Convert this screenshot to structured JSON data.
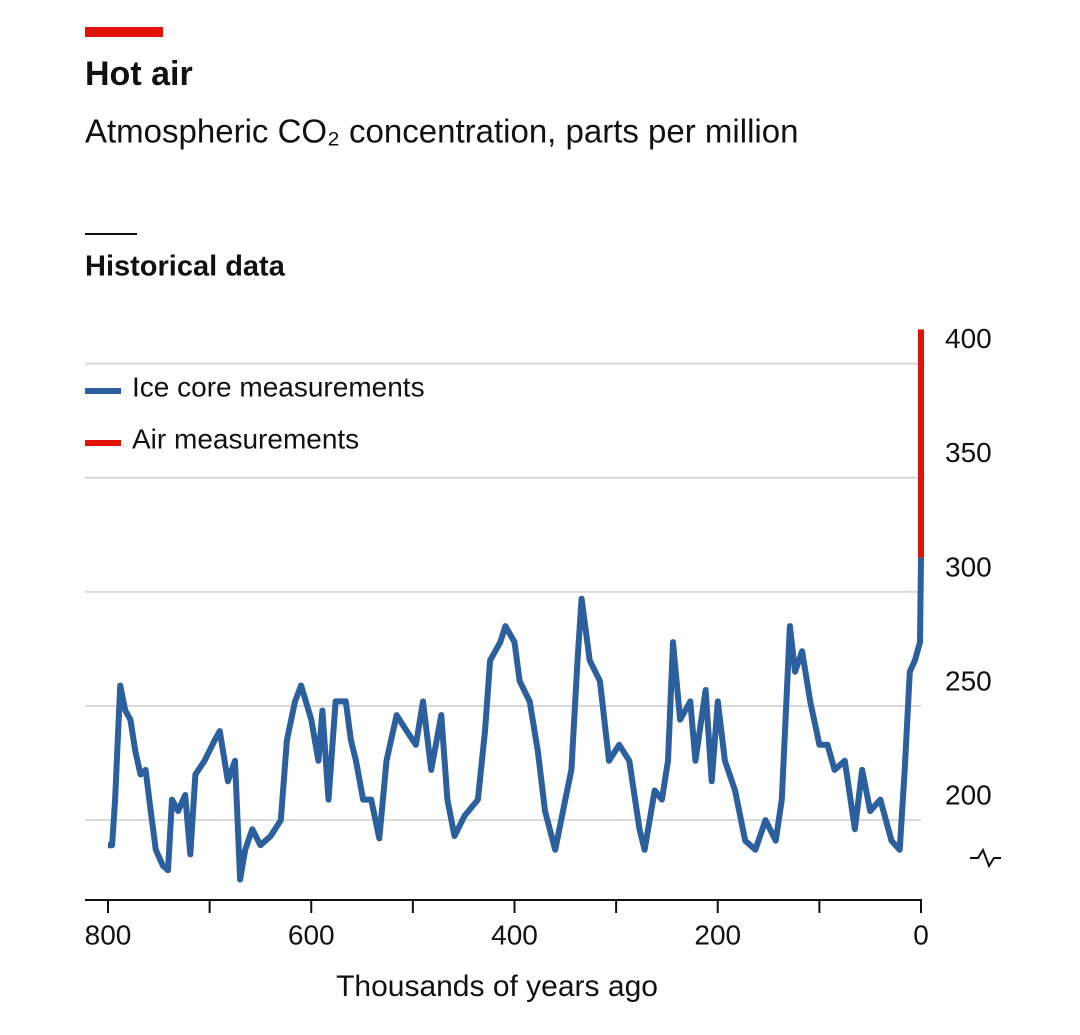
{
  "chart_data": {
    "type": "line",
    "title": "Hot air",
    "subtitle": "Atmospheric CO₂ concentration, parts per million",
    "section_title": "Historical data",
    "x_label": "Thousands of years ago",
    "xlim": [
      800,
      0
    ],
    "xticks": [
      800,
      600,
      400,
      200,
      0
    ],
    "xminor_ticks": [
      700,
      500,
      300,
      100
    ],
    "ylim": [
      165,
      420
    ],
    "yticks": [
      200,
      250,
      300,
      350,
      400
    ],
    "grid": true,
    "legend": "upper left",
    "series": [
      {
        "name": "Ice core measurements",
        "color": "#2b5f9e",
        "x": [
          800,
          796,
          793,
          788,
          783,
          778,
          773,
          768,
          763,
          758,
          753,
          746,
          741,
          737,
          731,
          724,
          719,
          714,
          705,
          695,
          690,
          682,
          675,
          670,
          665,
          658,
          650,
          640,
          630,
          624,
          616,
          610,
          600,
          593,
          589,
          583,
          576,
          566,
          561,
          556,
          549,
          541,
          533,
          526,
          516,
          506,
          497,
          490,
          482,
          472,
          466,
          459,
          449,
          436,
          429,
          424,
          414,
          409,
          400,
          395,
          385,
          377,
          370,
          360,
          350,
          344,
          338,
          334,
          326,
          316,
          307,
          297,
          287,
          277,
          272,
          262,
          255,
          249,
          244,
          237,
          227,
          222,
          212,
          206,
          200,
          193,
          183,
          173,
          163,
          153,
          143,
          137,
          129,
          124,
          117,
          109,
          100,
          92,
          85,
          75,
          65,
          58,
          50,
          40,
          29,
          21,
          16,
          11,
          6,
          1,
          0
        ],
        "values": [
          189,
          189,
          209,
          259,
          248,
          244,
          230,
          220,
          222,
          204,
          187,
          180,
          178,
          209,
          204,
          211,
          185,
          220,
          226,
          235,
          239,
          217,
          226,
          174,
          187,
          196,
          189,
          193,
          200,
          235,
          252,
          259,
          244,
          226,
          248,
          209,
          252,
          252,
          235,
          226,
          209,
          209,
          192,
          226,
          246,
          239,
          233,
          252,
          222,
          246,
          209,
          193,
          202,
          209,
          239,
          270,
          278,
          285,
          278,
          261,
          252,
          230,
          204,
          187,
          209,
          222,
          270,
          297,
          270,
          261,
          226,
          233,
          226,
          196,
          187,
          213,
          209,
          226,
          278,
          244,
          252,
          226,
          257,
          217,
          252,
          226,
          213,
          191,
          187,
          200,
          191,
          209,
          285,
          265,
          274,
          252,
          233,
          233,
          222,
          226,
          196,
          222,
          204,
          209,
          191,
          187,
          222,
          265,
          270,
          278,
          315
        ]
      },
      {
        "name": "Air measurements",
        "color": "#e3120b",
        "x": [
          0,
          0
        ],
        "values": [
          315,
          415
        ]
      }
    ]
  }
}
